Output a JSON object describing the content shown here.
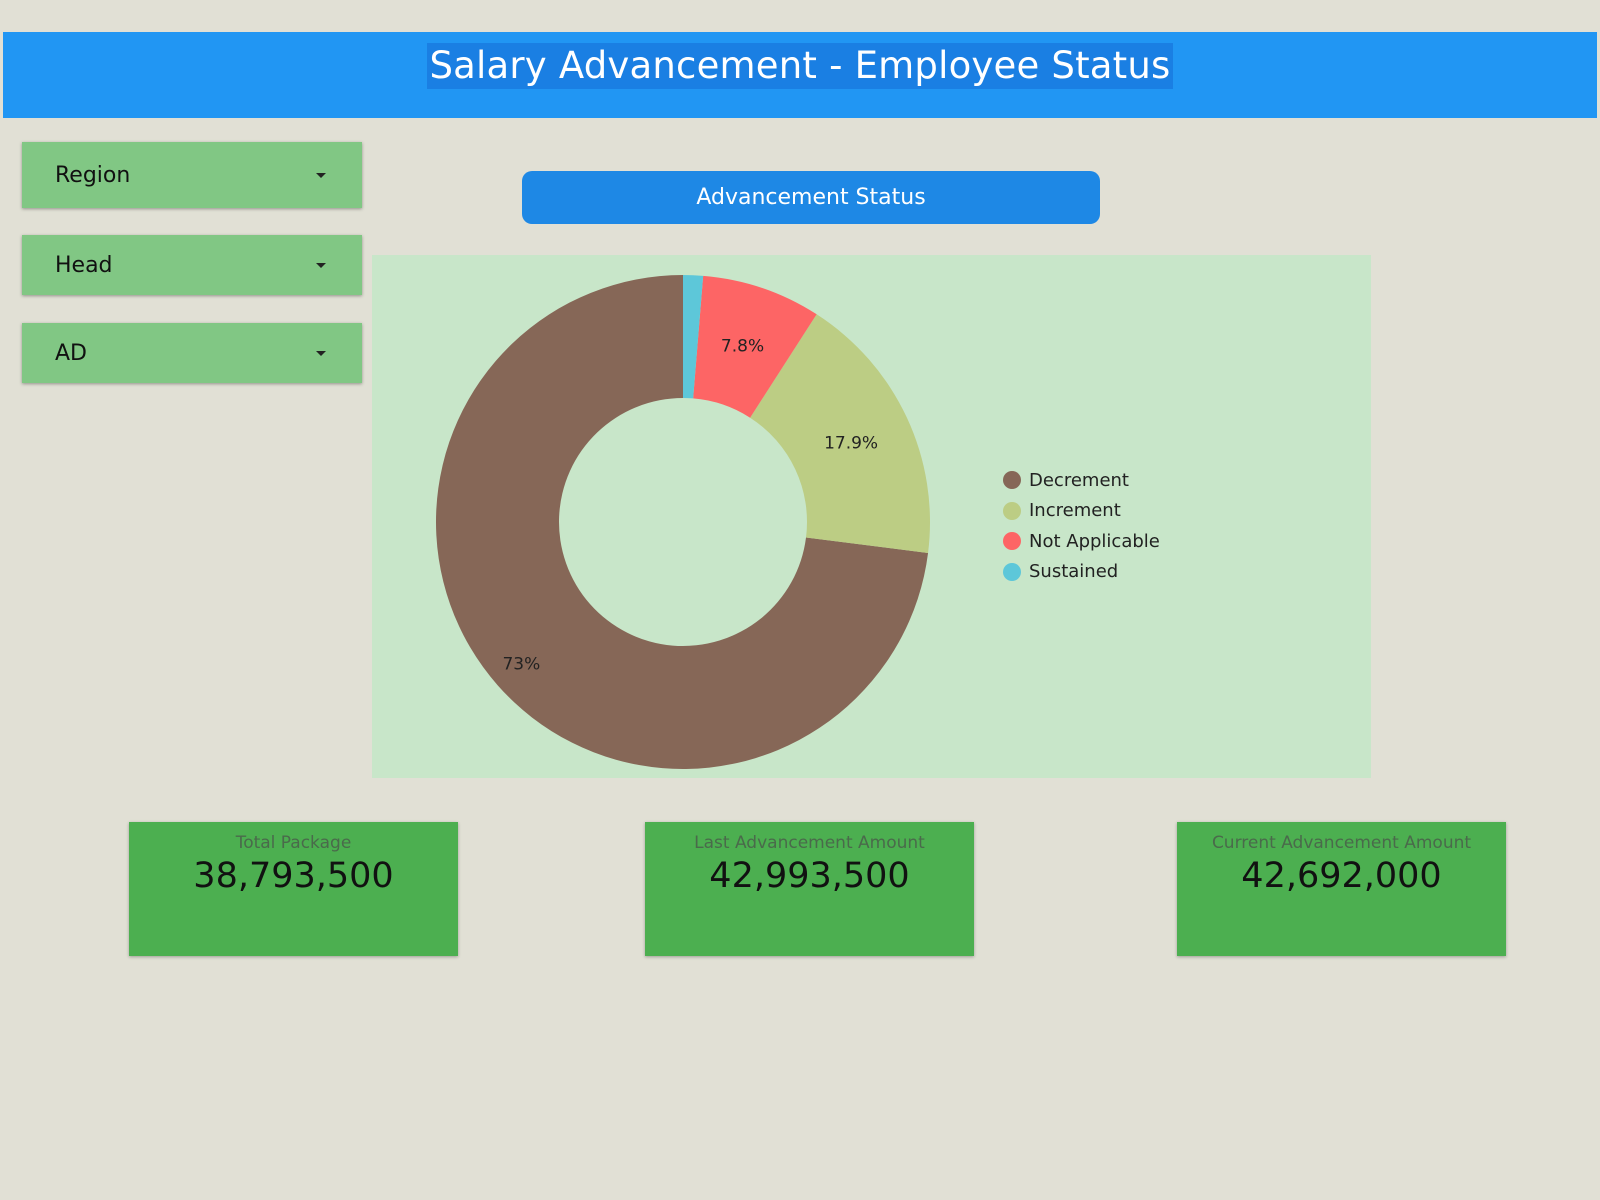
{
  "header": {
    "title": "Salary Advancement - Employee Status"
  },
  "filters": [
    {
      "label": "Region"
    },
    {
      "label": "Head"
    },
    {
      "label": "AD"
    }
  ],
  "status_button": {
    "label": "Advancement Status"
  },
  "colors": {
    "header": "#2196f3",
    "filter": "#81c784",
    "kpi": "#4caf50",
    "chart_panel": "#c8e6c9"
  },
  "chart_data": {
    "type": "pie",
    "donut": true,
    "legend_position": "right",
    "categories": [
      "Decrement",
      "Increment",
      "Not Applicable",
      "Sustained"
    ],
    "values": [
      73,
      17.9,
      7.8,
      1.3
    ],
    "data_labels": [
      "73%",
      "17.9%",
      "7.8%",
      ""
    ],
    "colors": [
      "#866757",
      "#bccd84",
      "#fd6565",
      "#5dc7d9"
    ]
  },
  "kpis": [
    {
      "label": "Total Package",
      "value": "38,793,500"
    },
    {
      "label": "Last Advancement Amount",
      "value": "42,993,500"
    },
    {
      "label": "Current Advancement Amount",
      "value": "42,692,000"
    }
  ]
}
